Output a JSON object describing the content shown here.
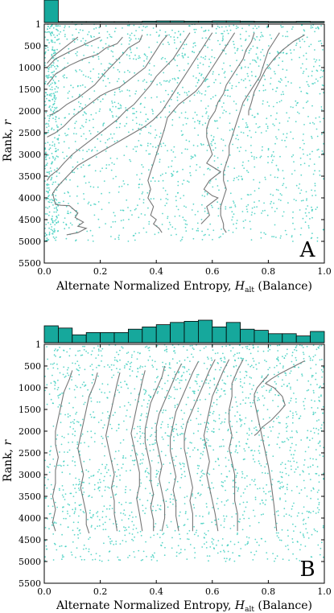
{
  "chart_data": [
    {
      "type": "scatter",
      "panel_label": "A",
      "xlabel": "Alternate Normalized Entropy, H_alt (Balance)",
      "xlabel_main": "Alternate Normalized Entropy, ",
      "xlabel_H": "H",
      "xlabel_sub": "alt",
      "xlabel_tail": " (Balance)",
      "ylabel": "Rank, r",
      "ylabel_main": "Rank, ",
      "ylabel_var": "r",
      "xlim": [
        0.0,
        1.0
      ],
      "ylim_inverted": [
        1,
        5500
      ],
      "xticks": [
        "0.0",
        "0.2",
        "0.4",
        "0.6",
        "0.8",
        "1.0"
      ],
      "yticks": [
        "1",
        "500",
        "1000",
        "1500",
        "2000",
        "2500",
        "3000",
        "3500",
        "4000",
        "4500",
        "5000",
        "5500"
      ],
      "scatter_color": "#40cfc0",
      "line_color": "#777777",
      "hist_color": "#16a89c",
      "histogram": {
        "bins": 20,
        "heights": [
          1.0,
          0.03,
          0.02,
          0.02,
          0.03,
          0.03,
          0.04,
          0.06,
          0.07,
          0.07,
          0.06,
          0.06,
          0.07,
          0.07,
          0.06,
          0.05,
          0.04,
          0.04,
          0.05,
          0.03
        ]
      },
      "series": [
        {
          "x": [
            0.12,
            0.09,
            0.06,
            0.03,
            0.01
          ],
          "y": [
            300,
            450,
            600,
            750,
            900
          ]
        },
        {
          "x": [
            0.2,
            0.15,
            0.1,
            0.04,
            0.01
          ],
          "y": [
            300,
            450,
            600,
            800,
            1000
          ]
        },
        {
          "x": [
            0.28,
            0.26,
            0.22,
            0.19,
            0.14,
            0.09,
            0.04,
            0.01
          ],
          "y": [
            300,
            450,
            550,
            700,
            800,
            950,
            1150,
            1400
          ]
        },
        {
          "x": [
            0.35,
            0.34,
            0.3,
            0.28,
            0.25,
            0.22,
            0.2,
            0.18,
            0.15,
            0.12,
            0.08,
            0.05,
            0.02
          ],
          "y": [
            250,
            400,
            550,
            700,
            900,
            1100,
            1250,
            1400,
            1550,
            1700,
            1850,
            2000,
            2100
          ]
        },
        {
          "x": [
            0.44,
            0.42,
            0.4,
            0.38,
            0.36,
            0.33,
            0.3,
            0.27,
            0.23,
            0.2,
            0.17,
            0.14,
            0.1,
            0.07,
            0.04,
            0.01
          ],
          "y": [
            250,
            400,
            600,
            800,
            1000,
            1150,
            1300,
            1450,
            1550,
            1650,
            1800,
            1950,
            2150,
            2350,
            2500,
            2600
          ]
        },
        {
          "x": [
            0.52,
            0.5,
            0.48,
            0.46,
            0.43,
            0.4,
            0.38,
            0.36,
            0.34,
            0.32,
            0.29,
            0.26,
            0.22,
            0.18,
            0.14,
            0.1,
            0.07,
            0.05,
            0.02,
            0.01
          ],
          "y": [
            200,
            400,
            600,
            800,
            1000,
            1200,
            1400,
            1550,
            1700,
            1850,
            2000,
            2200,
            2400,
            2600,
            2800,
            3000,
            3200,
            3350,
            3500,
            3600
          ]
        },
        {
          "x": [
            0.6,
            0.58,
            0.56,
            0.54,
            0.52,
            0.5,
            0.48,
            0.46,
            0.44,
            0.42,
            0.39,
            0.36,
            0.32,
            0.28,
            0.24,
            0.2,
            0.16,
            0.12,
            0.09,
            0.06,
            0.04,
            0.03,
            0.04,
            0.06,
            0.09,
            0.12,
            0.11,
            0.14,
            0.12,
            0.15,
            0.12,
            0.08
          ],
          "y": [
            200,
            400,
            600,
            800,
            1000,
            1200,
            1400,
            1600,
            1800,
            2000,
            2200,
            2350,
            2500,
            2650,
            2800,
            2950,
            3100,
            3250,
            3450,
            3650,
            3800,
            3900,
            4150,
            4170,
            4180,
            4350,
            4450,
            4560,
            4650,
            4700,
            4800,
            4850
          ]
        },
        {
          "x": [
            0.68,
            0.66,
            0.64,
            0.62,
            0.6,
            0.58,
            0.56,
            0.54,
            0.51,
            0.48,
            0.46,
            0.44,
            0.43,
            0.42,
            0.41,
            0.4,
            0.39,
            0.38,
            0.37,
            0.38,
            0.37,
            0.39,
            0.38,
            0.4,
            0.39,
            0.41,
            0.42
          ],
          "y": [
            200,
            400,
            600,
            800,
            1000,
            1200,
            1400,
            1550,
            1700,
            1850,
            2000,
            2150,
            2400,
            2600,
            2800,
            3000,
            3200,
            3400,
            3600,
            3800,
            4000,
            4200,
            4400,
            4500,
            4600,
            4700,
            4800
          ]
        },
        {
          "x": [
            0.75,
            0.74,
            0.72,
            0.71,
            0.69,
            0.67,
            0.65,
            0.64,
            0.62,
            0.61,
            0.59,
            0.58,
            0.58,
            0.59,
            0.6,
            0.58,
            0.63,
            0.59,
            0.57,
            0.6,
            0.62,
            0.6,
            0.58,
            0.59,
            0.56
          ],
          "y": [
            200,
            400,
            600,
            800,
            1000,
            1200,
            1400,
            1600,
            1800,
            2000,
            2200,
            2400,
            2600,
            2800,
            3000,
            3200,
            3400,
            3600,
            3800,
            3950,
            4000,
            4100,
            4200,
            4400,
            4600
          ]
        },
        {
          "x": [
            0.84,
            0.82,
            0.8,
            0.79,
            0.78,
            0.77,
            0.75,
            0.73,
            0.71,
            0.7,
            0.69,
            0.68,
            0.67,
            0.66,
            0.66,
            0.65,
            0.64,
            0.64,
            0.65,
            0.64,
            0.63,
            0.63,
            0.64,
            0.64,
            0.65
          ],
          "y": [
            200,
            400,
            600,
            800,
            1000,
            1200,
            1400,
            1600,
            1800,
            2000,
            2200,
            2400,
            2600,
            2800,
            3000,
            3200,
            3400,
            3600,
            3800,
            4000,
            4200,
            4400,
            4600,
            4700,
            4800
          ]
        },
        {
          "x": [
            0.93,
            0.89,
            0.85,
            0.82,
            0.79,
            0.77,
            0.75,
            0.74,
            0.73,
            0.73
          ],
          "y": [
            250,
            400,
            600,
            800,
            1050,
            1300,
            1550,
            1800,
            2000,
            2100
          ]
        }
      ]
    },
    {
      "type": "scatter",
      "panel_label": "B",
      "xlabel": "Alternate Normalized Entropy, H_alt (Balance)",
      "xlabel_main": "Alternate Normalized Entropy, ",
      "xlabel_H": "H",
      "xlabel_sub": "alt",
      "xlabel_tail": " (Balance)",
      "ylabel": "Rank, r",
      "ylabel_main": "Rank, ",
      "ylabel_var": "r",
      "xlim": [
        0.0,
        1.0
      ],
      "ylim_inverted": [
        1,
        5500
      ],
      "xticks": [
        "0.0",
        "0.2",
        "0.4",
        "0.6",
        "0.8",
        "1.0"
      ],
      "yticks": [
        "1",
        "500",
        "1000",
        "1500",
        "2000",
        "2500",
        "3000",
        "3500",
        "4000",
        "4500",
        "5000",
        "5500"
      ],
      "scatter_color": "#40cfc0",
      "line_color": "#777777",
      "hist_color": "#16a89c",
      "histogram": {
        "bins": 20,
        "heights": [
          0.75,
          0.65,
          0.35,
          0.45,
          0.45,
          0.45,
          0.6,
          0.7,
          0.8,
          0.9,
          0.95,
          1.0,
          0.7,
          0.9,
          0.6,
          0.55,
          0.4,
          0.4,
          0.3,
          0.5
        ]
      },
      "series": [
        {
          "x": [
            0.1,
            0.09,
            0.07,
            0.06,
            0.05,
            0.04,
            0.04,
            0.05,
            0.04,
            0.04,
            0.03,
            0.04,
            0.03,
            0.04
          ],
          "y": [
            600,
            800,
            1100,
            1400,
            1700,
            2000,
            2300,
            2600,
            2900,
            3200,
            3500,
            3800,
            4100,
            4300
          ]
        },
        {
          "x": [
            0.19,
            0.18,
            0.16,
            0.15,
            0.14,
            0.13,
            0.12,
            0.13,
            0.14,
            0.13,
            0.14,
            0.15,
            0.15,
            0.16
          ],
          "y": [
            650,
            900,
            1200,
            1500,
            1800,
            2100,
            2400,
            2700,
            3000,
            3300,
            3600,
            3900,
            4150,
            4350
          ]
        },
        {
          "x": [
            0.27,
            0.26,
            0.25,
            0.24,
            0.23,
            0.22,
            0.23,
            0.24,
            0.25,
            0.24,
            0.25,
            0.25,
            0.26
          ],
          "y": [
            650,
            900,
            1200,
            1500,
            1800,
            2100,
            2400,
            2700,
            3000,
            3300,
            3600,
            3900,
            4300
          ]
        },
        {
          "x": [
            0.36,
            0.35,
            0.34,
            0.33,
            0.32,
            0.31,
            0.32,
            0.33,
            0.34,
            0.34,
            0.33,
            0.34,
            0.35
          ],
          "y": [
            600,
            850,
            1150,
            1450,
            1750,
            2050,
            2350,
            2650,
            2950,
            3250,
            3550,
            3900,
            4300
          ]
        },
        {
          "x": [
            0.43,
            0.42,
            0.4,
            0.38,
            0.37,
            0.36,
            0.36,
            0.37,
            0.38,
            0.38,
            0.39,
            0.38,
            0.39,
            0.39
          ],
          "y": [
            500,
            750,
            1050,
            1350,
            1650,
            1950,
            2250,
            2550,
            2850,
            3150,
            3450,
            3750,
            4050,
            4300
          ]
        },
        {
          "x": [
            0.49,
            0.47,
            0.45,
            0.43,
            0.41,
            0.4,
            0.4,
            0.41,
            0.42,
            0.41,
            0.42,
            0.43,
            0.43,
            0.42
          ],
          "y": [
            450,
            700,
            1000,
            1300,
            1600,
            1900,
            2200,
            2500,
            2800,
            3100,
            3400,
            3700,
            4000,
            4300
          ]
        },
        {
          "x": [
            0.55,
            0.53,
            0.51,
            0.49,
            0.47,
            0.46,
            0.45,
            0.45,
            0.46,
            0.47,
            0.46,
            0.47,
            0.47,
            0.48
          ],
          "y": [
            400,
            650,
            950,
            1250,
            1550,
            1850,
            2150,
            2450,
            2750,
            3050,
            3350,
            3650,
            3950,
            4300
          ]
        },
        {
          "x": [
            0.61,
            0.59,
            0.57,
            0.55,
            0.53,
            0.51,
            0.5,
            0.5,
            0.51,
            0.52,
            0.53,
            0.52,
            0.53,
            0.53
          ],
          "y": [
            350,
            600,
            900,
            1200,
            1500,
            1800,
            2100,
            2400,
            2700,
            3000,
            3300,
            3600,
            3900,
            4300
          ]
        },
        {
          "x": [
            0.66,
            0.64,
            0.62,
            0.6,
            0.59,
            0.58,
            0.57,
            0.58,
            0.59,
            0.58,
            0.59,
            0.6,
            0.61,
            0.62
          ],
          "y": [
            350,
            600,
            900,
            1200,
            1500,
            1800,
            2100,
            2400,
            2700,
            3000,
            3300,
            3600,
            3900,
            4300
          ]
        },
        {
          "x": [
            0.71,
            0.69,
            0.67,
            0.67,
            0.66,
            0.66,
            0.67,
            0.66,
            0.67,
            0.68,
            0.68,
            0.68,
            0.69,
            0.69
          ],
          "y": [
            350,
            600,
            900,
            1200,
            1500,
            1800,
            2100,
            2400,
            2700,
            3000,
            3300,
            3600,
            3900,
            4300
          ]
        },
        {
          "x": [
            0.8,
            0.78,
            0.76,
            0.75,
            0.75,
            0.76,
            0.77,
            0.78,
            0.79,
            0.8,
            0.81,
            0.82,
            0.83
          ],
          "y": [
            700,
            850,
            1000,
            1150,
            1300,
            1600,
            1900,
            2200,
            2500,
            2800,
            3200,
            3700,
            4300
          ]
        },
        {
          "x": [
            0.93,
            0.9,
            0.87,
            0.84,
            0.81,
            0.79,
            0.82,
            0.85,
            0.86,
            0.84,
            0.81,
            0.78,
            0.76,
            0.75
          ],
          "y": [
            380,
            480,
            580,
            680,
            800,
            900,
            1000,
            1200,
            1400,
            1550,
            1750,
            1900,
            2050,
            2100
          ]
        }
      ]
    }
  ]
}
